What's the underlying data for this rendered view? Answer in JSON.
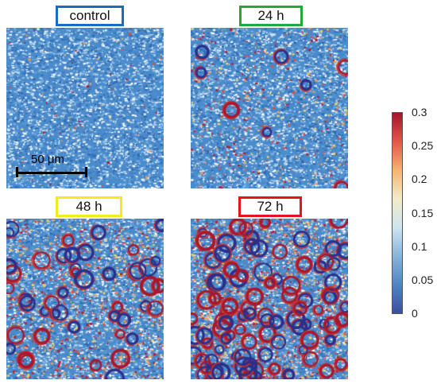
{
  "panels": [
    {
      "label": "control",
      "frame_color": "#1a6cc0",
      "level": 0.05
    },
    {
      "label": "24 h",
      "frame_color": "#1faa3c",
      "level": 0.3
    },
    {
      "label": "48 h",
      "frame_color": "#f5ea1b",
      "level": 0.7
    },
    {
      "label": "72 h",
      "frame_color": "#e3141b",
      "level": 1.0
    }
  ],
  "scale_bar": {
    "label": "50 μm"
  },
  "colorbar": {
    "ticks": [
      "0.3",
      "0.25",
      "0.2",
      "0.15",
      "0.1",
      "0.05",
      "0"
    ],
    "colors": [
      "#3a4fa0",
      "#4f86c4",
      "#86b6dc",
      "#cde5f0",
      "#f3ecc8",
      "#f6b36e",
      "#e2574a",
      "#a3142a"
    ]
  }
}
